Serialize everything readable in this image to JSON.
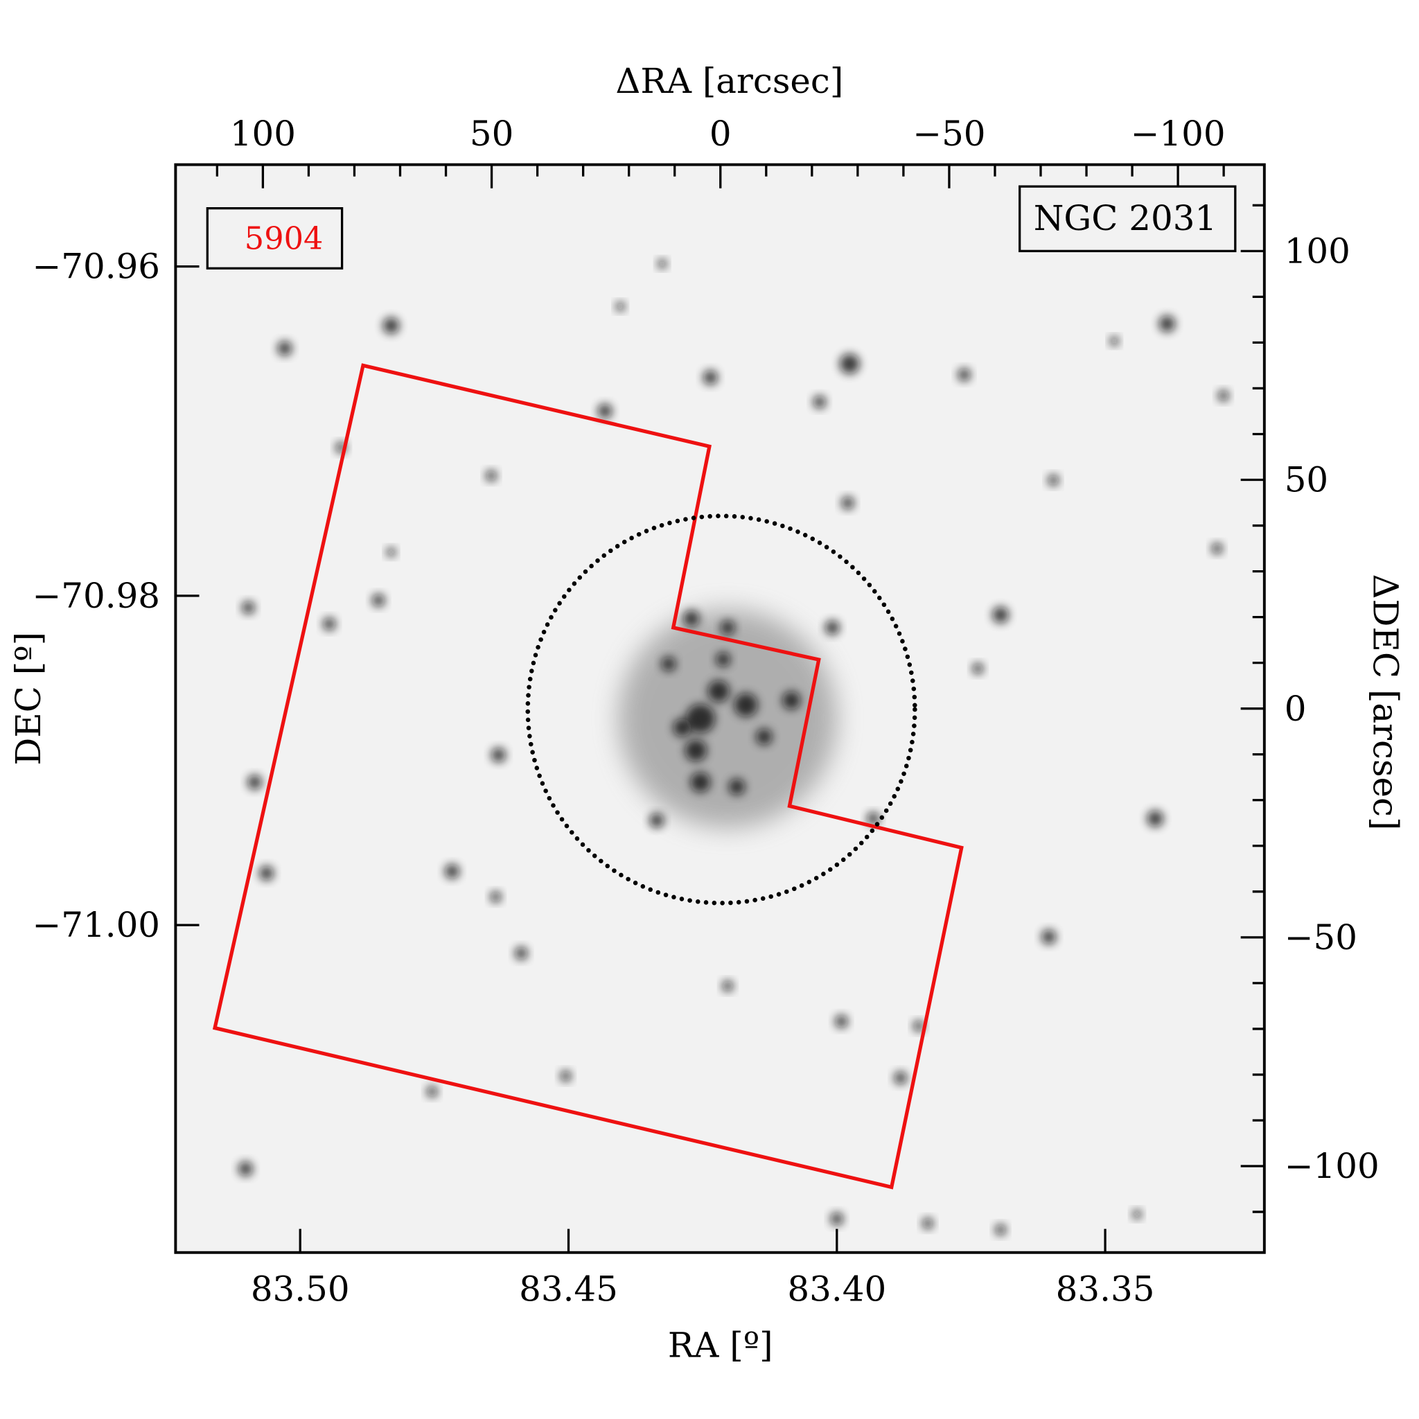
{
  "chart_data": {
    "type": "image-overlay",
    "title": "",
    "object_label": "NGC 2031",
    "field_label": "5904",
    "colors": {
      "footprint": "#ee1111",
      "field_label": "#ee1111",
      "circle": "#000000",
      "background": "#f2f2f2"
    },
    "bottom_axis": {
      "label": "RA [º]",
      "ticks": [
        "83.50",
        "83.45",
        "83.40",
        "83.35"
      ],
      "values": [
        83.5,
        83.45,
        83.4,
        83.35
      ]
    },
    "left_axis": {
      "label": "DEC [º]",
      "ticks": [
        "−70.96",
        "−70.98",
        "−71.00"
      ],
      "values": [
        -70.96,
        -70.98,
        -71.0
      ]
    },
    "top_axis": {
      "label": "ΔRA [arcsec]",
      "ticks": [
        "100",
        "50",
        "0",
        "−50",
        "−100"
      ],
      "values": [
        100,
        50,
        0,
        -50,
        -100
      ]
    },
    "right_axis": {
      "label": "ΔDEC [arcsec]",
      "ticks": [
        "100",
        "50",
        "0",
        "−50",
        "−100"
      ],
      "values": [
        100,
        50,
        0,
        -50,
        -100
      ]
    },
    "footprint_polygon_arcsec": [
      [
        78.1,
        75.0
      ],
      [
        2.4,
        57.3
      ],
      [
        10.3,
        17.7
      ],
      [
        -21.5,
        10.7
      ],
      [
        -15.1,
        -21.3
      ],
      [
        -52.7,
        -30.4
      ],
      [
        -37.4,
        -104.6
      ],
      [
        110.5,
        -69.8
      ]
    ],
    "cluster_circle_arcsec": {
      "center": [
        0,
        0
      ],
      "radius": 42.3,
      "style": "dotted"
    }
  }
}
